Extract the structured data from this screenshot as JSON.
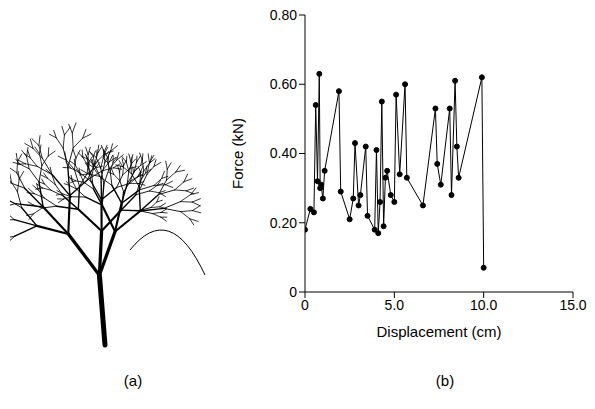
{
  "panel_labels": [
    "(a)",
    "(b)"
  ],
  "chart_data": {
    "type": "line",
    "x_label": "Displacement (cm)",
    "y_label": "Force (kN)",
    "x": [
      0,
      0.3,
      0.5,
      0.6,
      0.7,
      0.8,
      0.85,
      0.9,
      1.0,
      1.1,
      1.9,
      2.0,
      2.5,
      2.7,
      2.8,
      3.0,
      3.1,
      3.4,
      3.5,
      3.9,
      4.0,
      4.1,
      4.2,
      4.3,
      4.4,
      4.5,
      4.6,
      4.8,
      5.0,
      5.1,
      5.3,
      5.6,
      5.7,
      6.6,
      7.3,
      7.4,
      7.6,
      8.1,
      8.2,
      8.4,
      8.5,
      8.6,
      9.9,
      10.0
    ],
    "series": [
      {
        "name": "Force",
        "color": "#000000",
        "marker": "circle",
        "line_style": "solid",
        "values": [
          0.18,
          0.24,
          0.23,
          0.54,
          0.32,
          0.63,
          0.3,
          0.31,
          0.27,
          0.35,
          0.58,
          0.29,
          0.21,
          0.27,
          0.43,
          0.25,
          0.28,
          0.42,
          0.22,
          0.18,
          0.41,
          0.17,
          0.26,
          0.55,
          0.19,
          0.33,
          0.35,
          0.28,
          0.26,
          0.57,
          0.34,
          0.6,
          0.33,
          0.25,
          0.53,
          0.37,
          0.31,
          0.53,
          0.28,
          0.61,
          0.42,
          0.33,
          0.62,
          0.07
        ]
      }
    ],
    "xlim": [
      0,
      15
    ],
    "xticks": [
      0,
      {
        "value": 5,
        "label": "5.0"
      },
      {
        "value": 10,
        "label": "10.0"
      },
      {
        "value": 15,
        "label": "15.0"
      }
    ],
    "ylim": [
      0,
      0.8
    ],
    "yticks": [
      0,
      {
        "value": 0.2,
        "label": "0.20"
      },
      {
        "value": 0.4,
        "label": "0.40"
      },
      {
        "value": 0.6,
        "label": "0.60"
      },
      {
        "value": 0.8,
        "label": "0.80"
      }
    ],
    "grid": false
  }
}
